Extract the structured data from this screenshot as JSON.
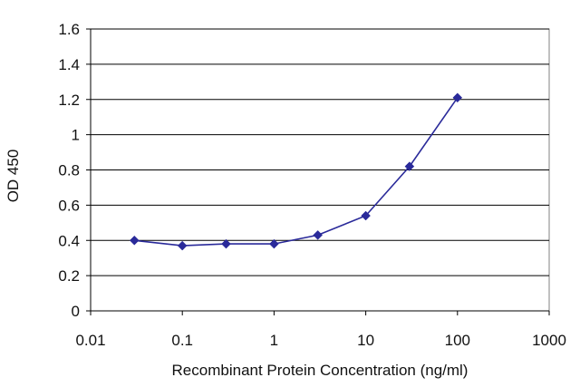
{
  "chart_data": {
    "type": "line",
    "title": "",
    "xlabel": "Recombinant Protein Concentration (ng/ml)",
    "ylabel": "OD 450",
    "x_scale": "log",
    "xlim": [
      0.01,
      1000
    ],
    "ylim": [
      0,
      1.6
    ],
    "x_ticks": [
      0.01,
      0.1,
      1,
      10,
      100,
      1000
    ],
    "x_tick_labels": [
      "0.01",
      "0.1",
      "1",
      "10",
      "100",
      "1000"
    ],
    "y_ticks": [
      0,
      0.2,
      0.4,
      0.6,
      0.8,
      1,
      1.2,
      1.4,
      1.6
    ],
    "y_tick_labels": [
      "0",
      "0.2",
      "0.4",
      "0.6",
      "0.8",
      "1",
      "1.2",
      "1.4",
      "1.6"
    ],
    "grid": "horizontal",
    "legend": "none",
    "series": [
      {
        "color": "#2a2a9a",
        "marker": "diamond",
        "x": [
          0.03,
          0.1,
          0.3,
          1,
          3,
          10,
          30,
          100
        ],
        "y": [
          0.4,
          0.37,
          0.38,
          0.38,
          0.43,
          0.54,
          0.82,
          1.21
        ]
      }
    ]
  }
}
